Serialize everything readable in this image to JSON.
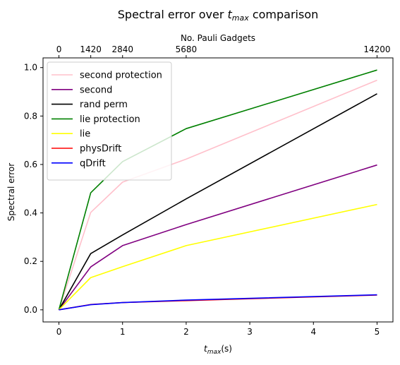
{
  "chart_data": {
    "type": "line",
    "title_main": "Spectral error over ",
    "title_var": "t",
    "title_sub": "max",
    "title_tail": " comparison",
    "xlabel_var": "t",
    "xlabel_sub": "max",
    "xlabel_unit": "(s)",
    "ylabel": "Spectral error",
    "top_xlabel": "No. Pauli Gadgets",
    "x": [
      0,
      0.5,
      1,
      2,
      5
    ],
    "xlim": [
      -0.25,
      5.25
    ],
    "ylim": [
      -0.05,
      1.04
    ],
    "xticks": [
      0,
      1,
      2,
      3,
      4,
      5
    ],
    "xtick_labels": [
      "0",
      "1",
      "2",
      "3",
      "4",
      "5"
    ],
    "yticks": [
      0.0,
      0.2,
      0.4,
      0.6,
      0.8,
      1.0
    ],
    "ytick_labels": [
      "0.0",
      "0.2",
      "0.4",
      "0.6",
      "0.8",
      "1.0"
    ],
    "top_ticks": [
      0,
      0.5,
      1,
      2,
      5
    ],
    "top_tick_labels": [
      "0",
      "1420",
      "2840",
      "5680",
      "14200"
    ],
    "grid": false,
    "legend_position": "top-left",
    "series": [
      {
        "name": "second protection",
        "color": "#ffc0cb",
        "values": [
          0.0,
          0.402,
          0.527,
          0.622,
          0.948
        ]
      },
      {
        "name": "second",
        "color": "#800080",
        "values": [
          0.0,
          0.177,
          0.265,
          0.352,
          0.598
        ]
      },
      {
        "name": "rand perm",
        "color": "#000000",
        "values": [
          0.0,
          0.232,
          0.309,
          0.458,
          0.892
        ]
      },
      {
        "name": "lie protection",
        "color": "#008000",
        "values": [
          0.0,
          0.483,
          0.612,
          0.748,
          0.99
        ]
      },
      {
        "name": "lie",
        "color": "#ffff00",
        "values": [
          0.0,
          0.133,
          0.178,
          0.265,
          0.435
        ]
      },
      {
        "name": "physDrift",
        "color": "#ff0000",
        "values": [
          0.0,
          0.022,
          0.03,
          0.038,
          0.061
        ]
      },
      {
        "name": "qDrift",
        "color": "#0000ff",
        "values": [
          0.0,
          0.021,
          0.03,
          0.04,
          0.062
        ]
      }
    ]
  }
}
